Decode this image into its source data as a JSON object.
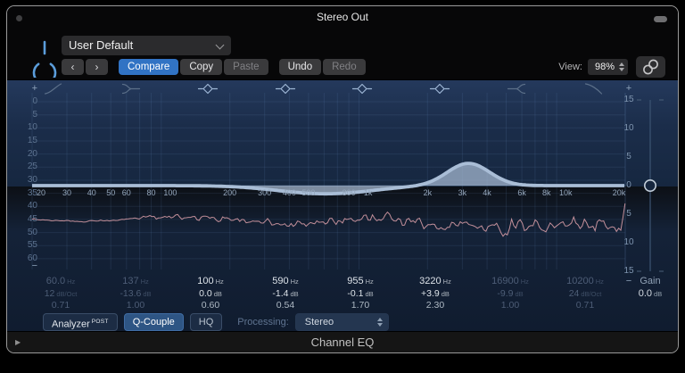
{
  "window": {
    "title": "Stereo Out",
    "footer_title": "Channel EQ"
  },
  "header": {
    "preset": "User Default",
    "prev": "‹",
    "next": "›",
    "compare": "Compare",
    "copy": "Copy",
    "paste": "Paste",
    "undo": "Undo",
    "redo": "Redo",
    "view_label": "View:",
    "view_value": "98%"
  },
  "eq": {
    "band_icons": [
      {
        "type": "highpass",
        "active": false
      },
      {
        "type": "lowshelf",
        "active": false
      },
      {
        "type": "bell",
        "active": true
      },
      {
        "type": "bell",
        "active": true
      },
      {
        "type": "bell",
        "active": true
      },
      {
        "type": "bell",
        "active": true
      },
      {
        "type": "highshelf",
        "active": false
      },
      {
        "type": "lowpass",
        "active": false
      }
    ],
    "left_scale": [
      "0",
      "5",
      "10",
      "15",
      "20",
      "25",
      "30",
      "35",
      "40",
      "45",
      "50",
      "55",
      "60"
    ],
    "right_scale": [
      "15",
      "10",
      "5",
      "0",
      "5",
      "10",
      "15"
    ],
    "plus_glyph": "+",
    "minus_glyph": "−",
    "freq_labels": [
      {
        "f": 20,
        "t": "20"
      },
      {
        "f": 30,
        "t": "30"
      },
      {
        "f": 40,
        "t": "40"
      },
      {
        "f": 50,
        "t": "50"
      },
      {
        "f": 60,
        "t": "60"
      },
      {
        "f": 80,
        "t": "80"
      },
      {
        "f": 100,
        "t": "100"
      },
      {
        "f": 200,
        "t": "200"
      },
      {
        "f": 300,
        "t": "300"
      },
      {
        "f": 400,
        "t": "400"
      },
      {
        "f": 500,
        "t": "500"
      },
      {
        "f": 800,
        "t": "800"
      },
      {
        "f": 1000,
        "t": "1k"
      },
      {
        "f": 2000,
        "t": "2k"
      },
      {
        "f": 3000,
        "t": "3k"
      },
      {
        "f": 4000,
        "t": "4k"
      },
      {
        "f": 6000,
        "t": "6k"
      },
      {
        "f": 8000,
        "t": "8k"
      },
      {
        "f": 10000,
        "t": "10k"
      },
      {
        "f": 20000,
        "t": "20k"
      }
    ],
    "bands": [
      {
        "freq": "60.0",
        "freq_unit": "Hz",
        "gain": "12",
        "gain_unit": "dB/Oct",
        "q": "0.71",
        "active": false
      },
      {
        "freq": "137",
        "freq_unit": "Hz",
        "gain": "-13.6",
        "gain_unit": "dB",
        "q": "1.00",
        "active": false
      },
      {
        "freq": "100",
        "freq_unit": "Hz",
        "gain": "0.0",
        "gain_unit": "dB",
        "q": "0.60",
        "active": true
      },
      {
        "freq": "590",
        "freq_unit": "Hz",
        "gain": "-1.4",
        "gain_unit": "dB",
        "q": "0.54",
        "active": true
      },
      {
        "freq": "955",
        "freq_unit": "Hz",
        "gain": "-0.1",
        "gain_unit": "dB",
        "q": "1.70",
        "active": true
      },
      {
        "freq": "3220",
        "freq_unit": "Hz",
        "gain": "+3.9",
        "gain_unit": "dB",
        "q": "2.30",
        "active": true
      },
      {
        "freq": "16900",
        "freq_unit": "Hz",
        "gain": "-9.9",
        "gain_unit": "dB",
        "q": "1.00",
        "active": false
      },
      {
        "freq": "10200",
        "freq_unit": "Hz",
        "gain": "24",
        "gain_unit": "dB/Oct",
        "q": "0.71",
        "active": false
      }
    ],
    "master_gain": {
      "label": "Gain",
      "value": "0.0",
      "unit": "dB"
    }
  },
  "toolbar": {
    "analyzer": "Analyzer",
    "analyzer_mode": "POST",
    "q_couple": "Q-Couple",
    "hq": "HQ",
    "processing_label": "Processing:",
    "processing_value": "Stereo"
  },
  "icons": {
    "disclosure": "▶"
  },
  "colors": {
    "accent_blue": "#3173c4",
    "power_blue": "#5b9ddb",
    "qcouple_blue": "#2e5584",
    "eq_curve": "#a9bdd6",
    "analyzer_pink": "#e2a3ad",
    "plot_bg_top": "#24395c",
    "plot_bg_bottom": "#101c2f"
  }
}
